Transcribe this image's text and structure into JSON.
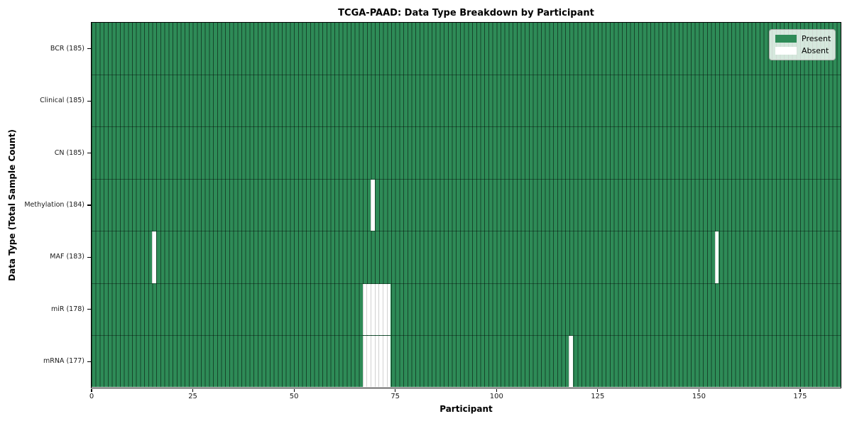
{
  "chart_data": {
    "type": "heatmap",
    "title": "TCGA-PAAD: Data Type Breakdown by Participant",
    "xlabel": "Participant",
    "ylabel": "Data Type (Total Sample Count)",
    "n_participants": 185,
    "x_ticks": [
      0,
      25,
      50,
      75,
      100,
      125,
      150,
      175
    ],
    "colors": {
      "present": "#2e8b57",
      "absent": "#ffffff",
      "grid_line_on_present": "rgba(0,0,0,0.5)",
      "grid_line_on_absent": "rgba(0,0,0,0.18)"
    },
    "legend": [
      {
        "label": "Present",
        "color": "#2e8b57"
      },
      {
        "label": "Absent",
        "color": "#ffffff"
      }
    ],
    "rows": [
      {
        "label": "BCR (185)",
        "data_type": "BCR",
        "total_samples": 185,
        "absent_participants": []
      },
      {
        "label": "Clinical (185)",
        "data_type": "Clinical",
        "total_samples": 185,
        "absent_participants": []
      },
      {
        "label": "CN (185)",
        "data_type": "CN",
        "total_samples": 185,
        "absent_participants": []
      },
      {
        "label": "Methylation (184)",
        "data_type": "Methylation",
        "total_samples": 184,
        "absent_participants": [
          69
        ]
      },
      {
        "label": "MAF (183)",
        "data_type": "MAF",
        "total_samples": 183,
        "absent_participants": [
          15,
          154
        ]
      },
      {
        "label": "miR (178)",
        "data_type": "miR",
        "total_samples": 178,
        "absent_participants": [
          67,
          68,
          69,
          70,
          71,
          72,
          73
        ]
      },
      {
        "label": "mRNA (177)",
        "data_type": "mRNA",
        "total_samples": 177,
        "absent_participants": [
          67,
          68,
          69,
          70,
          71,
          72,
          73,
          118
        ]
      }
    ]
  }
}
